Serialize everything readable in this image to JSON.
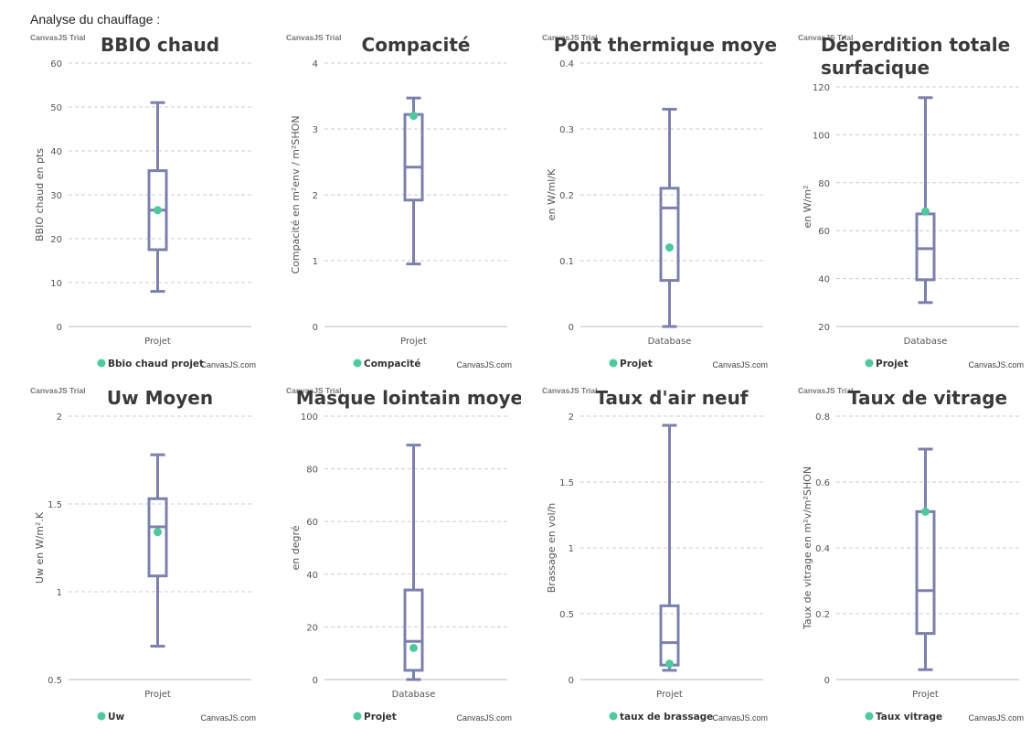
{
  "page_title": "Analyse du chauffage :",
  "colors": {
    "box": "#7b80ad",
    "point": "#4ec99f",
    "grid": "#cccccc",
    "axis": "#bbbbbb",
    "text": "#555555",
    "title": "#3a3a3a"
  },
  "trial_label": "CanvasJS Trial",
  "credit_label": "CanvasJS.com",
  "chart_data": [
    {
      "type": "box",
      "title": [
        "BBIO chaud"
      ],
      "ylabel": "BBIO chaud en pts",
      "category": "Projet",
      "ylim": [
        0,
        60
      ],
      "ticks": [
        0,
        10,
        20,
        30,
        40,
        50,
        60
      ],
      "tick_labels": [
        "0",
        "10",
        "20",
        "30",
        "40",
        "50",
        "60"
      ],
      "box": {
        "min": 8,
        "q1": 17.5,
        "median": 26.5,
        "q3": 35.5,
        "max": 51
      },
      "point": 26.5,
      "legend": "Bbio chaud projet"
    },
    {
      "type": "box",
      "title": [
        "Compacité"
      ],
      "ylabel": "Compacité en m²env / m²SHON",
      "category": "Projet",
      "ylim": [
        0,
        4
      ],
      "ticks": [
        0,
        1,
        2,
        3,
        4
      ],
      "tick_labels": [
        "0",
        "1",
        "2",
        "3",
        "4"
      ],
      "box": {
        "min": 0.95,
        "q1": 1.92,
        "median": 2.42,
        "q3": 3.22,
        "max": 3.47
      },
      "point": 3.2,
      "legend": "Compacité"
    },
    {
      "type": "box",
      "title": [
        "Pont thermique moyen"
      ],
      "ylabel": "en W/ml/K",
      "category": "Database",
      "ylim": [
        0,
        0.4
      ],
      "ticks": [
        0,
        0.1,
        0.2,
        0.3,
        0.4
      ],
      "tick_labels": [
        "0",
        "0.1",
        "0.2",
        "0.3",
        "0.4"
      ],
      "box": {
        "min": 0,
        "q1": 0.07,
        "median": 0.18,
        "q3": 0.21,
        "max": 0.33
      },
      "point": 0.12,
      "legend": "Projet"
    },
    {
      "type": "box",
      "title": [
        "Déperdition totale",
        "surfacique"
      ],
      "ylabel": "en W/m²",
      "category": "Database",
      "ylim": [
        20,
        120
      ],
      "ticks": [
        20,
        40,
        60,
        80,
        100,
        120
      ],
      "tick_labels": [
        "20",
        "40",
        "60",
        "80",
        "100",
        "120"
      ],
      "box": {
        "min": 30,
        "q1": 39.5,
        "median": 52.5,
        "q3": 67,
        "max": 115.5
      },
      "point": 68,
      "legend": "Projet"
    },
    {
      "type": "box",
      "title": [
        "Uw Moyen"
      ],
      "ylabel": "Uw en W/m².K",
      "category": "Projet",
      "ylim": [
        0.5,
        2
      ],
      "ticks": [
        0.5,
        1,
        1.5,
        2
      ],
      "tick_labels": [
        "0.5",
        "1",
        "1.5",
        "2"
      ],
      "box": {
        "min": 0.69,
        "q1": 1.09,
        "median": 1.37,
        "q3": 1.53,
        "max": 1.78
      },
      "point": 1.34,
      "legend": "Uw"
    },
    {
      "type": "box",
      "title": [
        "Masque lointain moyen"
      ],
      "ylabel": "en degré",
      "category": "Database",
      "ylim": [
        0,
        100
      ],
      "ticks": [
        0,
        20,
        40,
        60,
        80,
        100
      ],
      "tick_labels": [
        "0",
        "20",
        "40",
        "60",
        "80",
        "100"
      ],
      "box": {
        "min": 0,
        "q1": 3.5,
        "median": 14.5,
        "q3": 34,
        "max": 89
      },
      "point": 12,
      "legend": "Projet"
    },
    {
      "type": "box",
      "title": [
        "Taux d'air neuf"
      ],
      "ylabel": "Brassage en vol/h",
      "category": "Projet",
      "ylim": [
        0,
        2
      ],
      "ticks": [
        0,
        0.5,
        1,
        1.5,
        2
      ],
      "tick_labels": [
        "0",
        "0.5",
        "1",
        "1.5",
        "2"
      ],
      "box": {
        "min": 0.07,
        "q1": 0.11,
        "median": 0.28,
        "q3": 0.56,
        "max": 1.93
      },
      "point": 0.12,
      "legend": "taux de brassage"
    },
    {
      "type": "box",
      "title": [
        "Taux de vitrage"
      ],
      "ylabel": "Taux de vitrage en m²v/m²SHON",
      "category": "Projet",
      "ylim": [
        0,
        0.8
      ],
      "ticks": [
        0,
        0.2,
        0.4,
        0.6,
        0.8
      ],
      "tick_labels": [
        "0",
        "0.2",
        "0.4",
        "0.6",
        "0.8"
      ],
      "box": {
        "min": 0.03,
        "q1": 0.14,
        "median": 0.27,
        "q3": 0.51,
        "max": 0.7
      },
      "point": 0.51,
      "legend": "Taux vitrage"
    }
  ]
}
